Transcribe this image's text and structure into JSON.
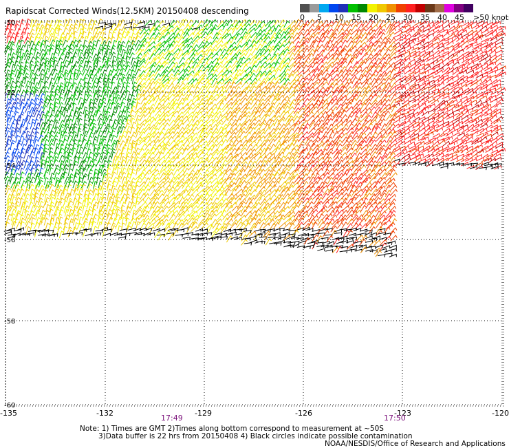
{
  "title": "Rapidscat Corrected Winds(12.5KM) 20150408 descending",
  "colors": {
    "scale": [
      "#505050",
      "#9a9a9a",
      "#00a8f0",
      "#0046f0",
      "#2030b8",
      "#00c000",
      "#008800",
      "#f2f200",
      "#f0c800",
      "#f09000",
      "#f04000",
      "#ff2020",
      "#c00000",
      "#6a3818",
      "#a06c48",
      "#e000e0",
      "#800080",
      "#400060"
    ],
    "flag": "#000000",
    "grid": "#000000"
  },
  "legend_numbers": [
    "0",
    "5",
    "10",
    "15",
    "20",
    "25",
    "30",
    "35",
    "40",
    "45"
  ],
  "legend_unit_label": ">50 knots",
  "lat_labels": [
    "-50",
    "-52",
    "-54",
    "-56",
    "-58",
    "-60"
  ],
  "lon_labels": [
    "-135",
    "-132",
    "-129",
    "-126",
    "-123",
    "-120"
  ],
  "time_labels": [
    "17:49",
    "17:50"
  ],
  "notes": {
    "line1": "Note: 1) Times are GMT 2)Times along bottom correspond to measurement at ~50S",
    "line2": "3)Data buffer is 22 hrs from 20150408 4) Black circles indicate possible contamination",
    "credit": "NOAA/NESDIS/Office of Research and Applications"
  }
}
